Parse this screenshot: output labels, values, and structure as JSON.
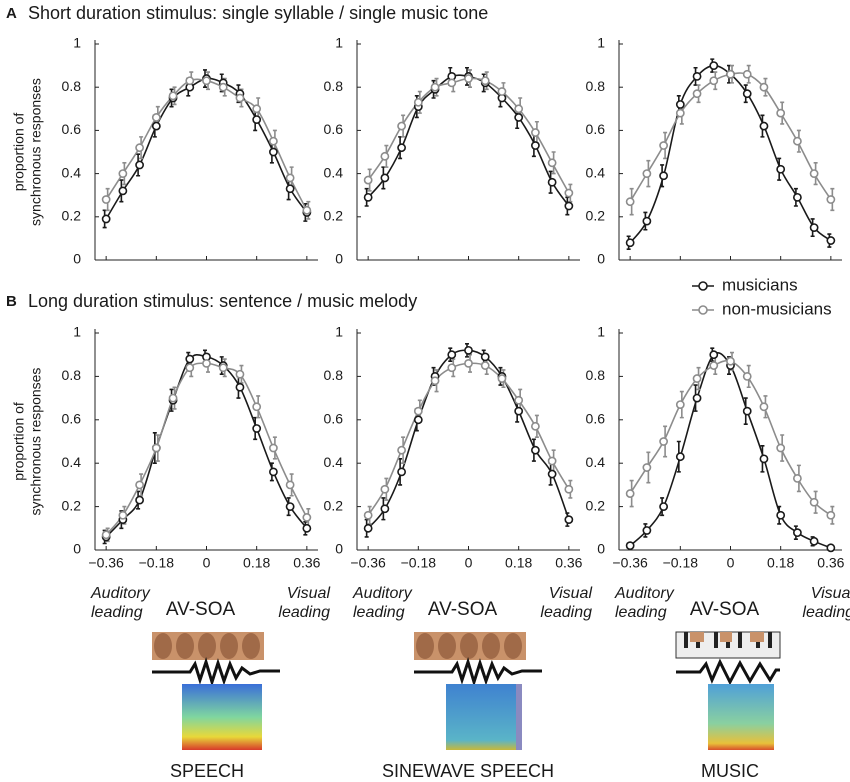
{
  "headings": [
    {
      "letter": "A",
      "title": "Short duration stimulus: single syllable / single music tone"
    },
    {
      "letter": "B",
      "title": "Long duration stimulus: sentence / music melody"
    }
  ],
  "stimuli": [
    "SPEECH",
    "SINEWAVE SPEECH",
    "MUSIC"
  ],
  "chart_data": [
    {
      "type": "line",
      "ylabel": [
        "proportion of",
        "synchronous responses"
      ],
      "x": [
        -0.36,
        -0.3,
        -0.24,
        -0.18,
        -0.12,
        -0.06,
        0,
        0.06,
        0.12,
        0.18,
        0.24,
        0.3,
        0.36
      ],
      "xlim": [
        -0.4,
        0.4
      ],
      "xticks": [
        -0.36,
        -0.18,
        0,
        0.18,
        0.36
      ],
      "xtick_labels": false,
      "ylim": [
        0,
        1
      ],
      "yticks": [
        0,
        0.2,
        0.4,
        0.6,
        0.8,
        1
      ],
      "series": [
        {
          "name": "musicians",
          "color": "#1a1a1a",
          "values": [
            0.19,
            0.32,
            0.44,
            0.62,
            0.75,
            0.8,
            0.84,
            0.82,
            0.77,
            0.65,
            0.5,
            0.33,
            0.22
          ],
          "errors": [
            0.04,
            0.05,
            0.05,
            0.05,
            0.04,
            0.04,
            0.04,
            0.04,
            0.04,
            0.05,
            0.05,
            0.05,
            0.04
          ]
        },
        {
          "name": "non-musicians",
          "color": "#8c8c8c",
          "values": [
            0.28,
            0.4,
            0.52,
            0.66,
            0.76,
            0.83,
            0.83,
            0.8,
            0.75,
            0.7,
            0.55,
            0.38,
            0.23
          ],
          "errors": [
            0.05,
            0.05,
            0.05,
            0.05,
            0.04,
            0.04,
            0.04,
            0.04,
            0.04,
            0.05,
            0.05,
            0.05,
            0.04
          ]
        }
      ]
    },
    {
      "type": "line",
      "x": [
        -0.36,
        -0.3,
        -0.24,
        -0.18,
        -0.12,
        -0.06,
        0,
        0.06,
        0.12,
        0.18,
        0.24,
        0.3,
        0.36
      ],
      "xlim": [
        -0.4,
        0.4
      ],
      "xticks": [
        -0.36,
        -0.18,
        0,
        0.18,
        0.36
      ],
      "xtick_labels": false,
      "ylim": [
        0,
        1
      ],
      "yticks": [
        0,
        0.2,
        0.4,
        0.6,
        0.8,
        1
      ],
      "series": [
        {
          "name": "musicians",
          "color": "#1a1a1a",
          "values": [
            0.29,
            0.38,
            0.52,
            0.71,
            0.79,
            0.85,
            0.85,
            0.82,
            0.75,
            0.66,
            0.53,
            0.36,
            0.25
          ],
          "errors": [
            0.04,
            0.05,
            0.05,
            0.05,
            0.04,
            0.04,
            0.04,
            0.04,
            0.04,
            0.05,
            0.05,
            0.05,
            0.04
          ]
        },
        {
          "name": "non-musicians",
          "color": "#8c8c8c",
          "values": [
            0.37,
            0.48,
            0.62,
            0.73,
            0.8,
            0.82,
            0.84,
            0.83,
            0.78,
            0.7,
            0.59,
            0.45,
            0.31
          ],
          "errors": [
            0.05,
            0.05,
            0.05,
            0.05,
            0.04,
            0.04,
            0.04,
            0.04,
            0.04,
            0.05,
            0.05,
            0.05,
            0.04
          ]
        }
      ]
    },
    {
      "type": "line",
      "x": [
        -0.36,
        -0.3,
        -0.24,
        -0.18,
        -0.12,
        -0.06,
        0,
        0.06,
        0.12,
        0.18,
        0.24,
        0.3,
        0.36
      ],
      "xlim": [
        -0.4,
        0.4
      ],
      "xticks": [
        -0.36,
        -0.18,
        0,
        0.18,
        0.36
      ],
      "xtick_labels": false,
      "ylim": [
        0,
        1
      ],
      "yticks": [
        0,
        0.2,
        0.4,
        0.6,
        0.8,
        1
      ],
      "legend": "bottom right",
      "series": [
        {
          "name": "musicians",
          "color": "#1a1a1a",
          "values": [
            0.08,
            0.18,
            0.39,
            0.72,
            0.85,
            0.9,
            0.86,
            0.77,
            0.62,
            0.42,
            0.29,
            0.15,
            0.09
          ],
          "errors": [
            0.03,
            0.04,
            0.05,
            0.04,
            0.04,
            0.03,
            0.04,
            0.04,
            0.05,
            0.05,
            0.04,
            0.04,
            0.03
          ]
        },
        {
          "name": "non-musicians",
          "color": "#8c8c8c",
          "values": [
            0.27,
            0.4,
            0.53,
            0.68,
            0.77,
            0.83,
            0.86,
            0.86,
            0.8,
            0.68,
            0.55,
            0.4,
            0.28
          ],
          "errors": [
            0.06,
            0.06,
            0.06,
            0.05,
            0.04,
            0.04,
            0.04,
            0.04,
            0.04,
            0.05,
            0.05,
            0.05,
            0.05
          ]
        }
      ]
    },
    {
      "type": "line",
      "ylabel": [
        "proportion of",
        "synchronous responses"
      ],
      "xlabel": "AV-SOA",
      "left_note": [
        "Auditory",
        "leading"
      ],
      "right_note": [
        "Visual",
        "leading"
      ],
      "x": [
        -0.36,
        -0.3,
        -0.24,
        -0.18,
        -0.12,
        -0.06,
        0,
        0.06,
        0.12,
        0.18,
        0.24,
        0.3,
        0.36
      ],
      "xlim": [
        -0.4,
        0.4
      ],
      "xticks": [
        {
          "value": -0.36,
          "label": "−0.36"
        },
        {
          "value": -0.18,
          "label": "−0.18"
        },
        0,
        0.18,
        0.36
      ],
      "ylim": [
        0,
        1
      ],
      "yticks": [
        0,
        0.2,
        0.4,
        0.6,
        0.8,
        1
      ],
      "series": [
        {
          "name": "musicians",
          "color": "#1a1a1a",
          "values": [
            0.06,
            0.14,
            0.23,
            0.47,
            0.69,
            0.88,
            0.89,
            0.85,
            0.75,
            0.56,
            0.36,
            0.2,
            0.1
          ],
          "errors": [
            0.03,
            0.04,
            0.04,
            0.07,
            0.05,
            0.03,
            0.03,
            0.04,
            0.05,
            0.05,
            0.04,
            0.04,
            0.03
          ]
        },
        {
          "name": "non-musicians",
          "color": "#8c8c8c",
          "values": [
            0.07,
            0.16,
            0.3,
            0.47,
            0.7,
            0.84,
            0.86,
            0.84,
            0.81,
            0.66,
            0.47,
            0.3,
            0.15
          ],
          "errors": [
            0.03,
            0.04,
            0.05,
            0.06,
            0.05,
            0.04,
            0.04,
            0.04,
            0.04,
            0.05,
            0.05,
            0.05,
            0.04
          ]
        }
      ]
    },
    {
      "type": "line",
      "xlabel": "AV-SOA",
      "left_note": [
        "Auditory",
        "leading"
      ],
      "right_note": [
        "Visual",
        "leading"
      ],
      "x": [
        -0.36,
        -0.3,
        -0.24,
        -0.18,
        -0.12,
        -0.06,
        0,
        0.06,
        0.12,
        0.18,
        0.24,
        0.3,
        0.36
      ],
      "xlim": [
        -0.4,
        0.4
      ],
      "xticks": [
        {
          "value": -0.36,
          "label": "−0.36"
        },
        {
          "value": -0.18,
          "label": "−0.18"
        },
        0,
        0.18,
        0.36
      ],
      "ylim": [
        0,
        1
      ],
      "yticks": [
        0,
        0.2,
        0.4,
        0.6,
        0.8,
        1
      ],
      "series": [
        {
          "name": "musicians",
          "color": "#1a1a1a",
          "values": [
            0.1,
            0.19,
            0.36,
            0.6,
            0.8,
            0.9,
            0.92,
            0.89,
            0.8,
            0.64,
            0.46,
            0.35,
            0.14
          ],
          "errors": [
            0.04,
            0.05,
            0.06,
            0.05,
            0.04,
            0.03,
            0.03,
            0.03,
            0.04,
            0.05,
            0.05,
            0.05,
            0.03
          ]
        },
        {
          "name": "non-musicians",
          "color": "#8c8c8c",
          "values": [
            0.16,
            0.28,
            0.46,
            0.64,
            0.78,
            0.84,
            0.86,
            0.85,
            0.79,
            0.69,
            0.57,
            0.41,
            0.28
          ],
          "errors": [
            0.04,
            0.05,
            0.06,
            0.05,
            0.05,
            0.04,
            0.04,
            0.04,
            0.04,
            0.05,
            0.05,
            0.05,
            0.04
          ]
        }
      ]
    },
    {
      "type": "line",
      "xlabel": "AV-SOA",
      "left_note": [
        "Auditory",
        "leading"
      ],
      "right_note": [
        "Visual",
        "leading"
      ],
      "x": [
        -0.36,
        -0.3,
        -0.24,
        -0.18,
        -0.12,
        -0.06,
        0,
        0.06,
        0.12,
        0.18,
        0.24,
        0.3,
        0.36
      ],
      "xlim": [
        -0.4,
        0.4
      ],
      "xticks": [
        {
          "value": -0.36,
          "label": "−0.36"
        },
        {
          "value": -0.18,
          "label": "−0.18"
        },
        0,
        0.18,
        0.36
      ],
      "ylim": [
        0,
        1
      ],
      "yticks": [
        0,
        0.2,
        0.4,
        0.6,
        0.8,
        1
      ],
      "series": [
        {
          "name": "musicians",
          "color": "#1a1a1a",
          "values": [
            0.02,
            0.09,
            0.2,
            0.43,
            0.7,
            0.9,
            0.85,
            0.64,
            0.42,
            0.16,
            0.08,
            0.04,
            0.01
          ],
          "errors": [
            0.01,
            0.03,
            0.04,
            0.07,
            0.06,
            0.03,
            0.04,
            0.06,
            0.06,
            0.04,
            0.03,
            0.02,
            0.01
          ]
        },
        {
          "name": "non-musicians",
          "color": "#8c8c8c",
          "values": [
            0.26,
            0.38,
            0.5,
            0.67,
            0.79,
            0.85,
            0.87,
            0.8,
            0.66,
            0.47,
            0.33,
            0.22,
            0.16
          ],
          "errors": [
            0.06,
            0.07,
            0.07,
            0.06,
            0.05,
            0.04,
            0.04,
            0.05,
            0.05,
            0.06,
            0.06,
            0.05,
            0.04
          ]
        }
      ]
    }
  ]
}
